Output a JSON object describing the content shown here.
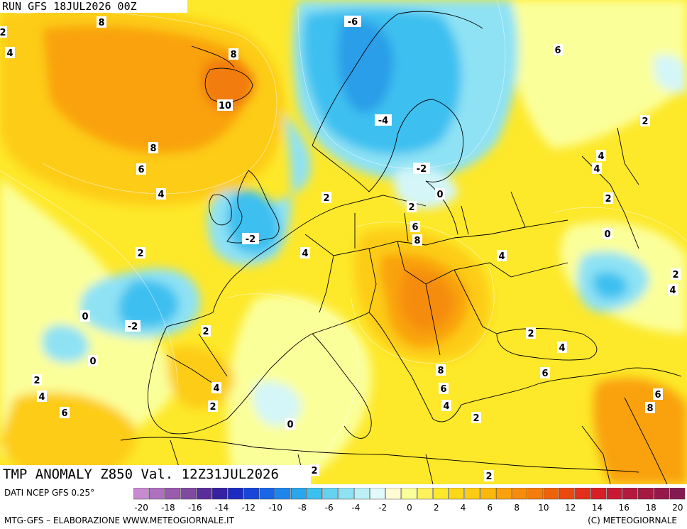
{
  "run_label": "RUN GFS 18JUL2026 00Z",
  "map_title": "TMP ANOMALY Z850 Val. 12Z31JUL2026",
  "data_credit": "DATI NCEP GFS 0.25°",
  "source_credit": "MTG-GFS – ELABORAZIONE WWW.METEOGIORNALE.IT",
  "copyright": "(C) METEOGIORNALE",
  "colors": {
    "anom_m6": "#2a9ee8",
    "anom_m4": "#3cc0f0",
    "anom_m2": "#8ee2f4",
    "anom_0": "#d4f6f8",
    "anom_p2": "#fbff9a",
    "anom_p4": "#fde82a",
    "anom_p6": "#fdcc12",
    "anom_p8": "#f9a20e",
    "anom_p10": "#f27c0c",
    "borders": "#000000"
  },
  "color_scale": {
    "tick_labels": [
      "-20",
      "-18",
      "-16",
      "-14",
      "-12",
      "-10",
      "-8",
      "-6",
      "-4",
      "-2",
      "0",
      "2",
      "4",
      "6",
      "8",
      "10",
      "12",
      "14",
      "16",
      "18",
      "20"
    ],
    "swatches": [
      "#c88ad0",
      "#b070c0",
      "#9a5aae",
      "#7f4aa0",
      "#5a2e9a",
      "#3422a0",
      "#1c2cc0",
      "#1846d8",
      "#1a66e6",
      "#1e86ea",
      "#2aa6ec",
      "#3cc0f0",
      "#66d2f2",
      "#8ee2f4",
      "#bdf0f6",
      "#e2fafa",
      "#fffbd4",
      "#fbff9a",
      "#fff25a",
      "#fde82a",
      "#fdd81a",
      "#fdcc12",
      "#fbb80c",
      "#f9a20e",
      "#f68c0e",
      "#f27c0c",
      "#ee620c",
      "#ea4a10",
      "#e4301a",
      "#d81e26",
      "#c81a32",
      "#b4183c",
      "#a41842",
      "#94184a",
      "#841a52"
    ]
  },
  "contour_labels": [
    {
      "value": "8",
      "region": "north-atlantic"
    },
    {
      "value": "2",
      "region": "west-edge"
    },
    {
      "value": "4",
      "region": "west-edge"
    },
    {
      "value": "8",
      "region": "iceland"
    },
    {
      "value": "10",
      "region": "iceland"
    },
    {
      "value": "8",
      "region": "north-atlantic"
    },
    {
      "value": "6",
      "region": "north-atlantic"
    },
    {
      "value": "4",
      "region": "north-atlantic"
    },
    {
      "value": "2",
      "region": "central-atlantic"
    },
    {
      "value": "0",
      "region": "central-atlantic"
    },
    {
      "value": "-2",
      "region": "central-atlantic"
    },
    {
      "value": "0",
      "region": "central-atlantic"
    },
    {
      "value": "2",
      "region": "iberia-west"
    },
    {
      "value": "4",
      "region": "iberia-west"
    },
    {
      "value": "6",
      "region": "iberia-west"
    },
    {
      "value": "-6",
      "region": "norway"
    },
    {
      "value": "-4",
      "region": "scandinavia"
    },
    {
      "value": "-2",
      "region": "baltic"
    },
    {
      "value": "0",
      "region": "baltic"
    },
    {
      "value": "2",
      "region": "north-sea"
    },
    {
      "value": "2",
      "region": "poland"
    },
    {
      "value": "-2",
      "region": "great-britain"
    },
    {
      "value": "4",
      "region": "benelux"
    },
    {
      "value": "6",
      "region": "central-europe"
    },
    {
      "value": "8",
      "region": "central-europe"
    },
    {
      "value": "4",
      "region": "ukraine"
    },
    {
      "value": "6",
      "region": "russia"
    },
    {
      "value": "2",
      "region": "russia"
    },
    {
      "value": "4",
      "region": "russia"
    },
    {
      "value": "4",
      "region": "russia"
    },
    {
      "value": "2",
      "region": "russia"
    },
    {
      "value": "0",
      "region": "volga"
    },
    {
      "value": "2",
      "region": "caspian"
    },
    {
      "value": "4",
      "region": "caspian"
    },
    {
      "value": "2",
      "region": "france"
    },
    {
      "value": "4",
      "region": "iberia"
    },
    {
      "value": "2",
      "region": "iberia"
    },
    {
      "value": "0",
      "region": "balearic-sea"
    },
    {
      "value": "8",
      "region": "balkans"
    },
    {
      "value": "6",
      "region": "balkans"
    },
    {
      "value": "4",
      "region": "greece"
    },
    {
      "value": "2",
      "region": "black-sea"
    },
    {
      "value": "4",
      "region": "black-sea"
    },
    {
      "value": "6",
      "region": "turkey"
    },
    {
      "value": "2",
      "region": "aegean"
    },
    {
      "value": "6",
      "region": "levant"
    },
    {
      "value": "8",
      "region": "levant"
    },
    {
      "value": "2",
      "region": "north-africa"
    },
    {
      "value": "2",
      "region": "north-africa"
    }
  ]
}
